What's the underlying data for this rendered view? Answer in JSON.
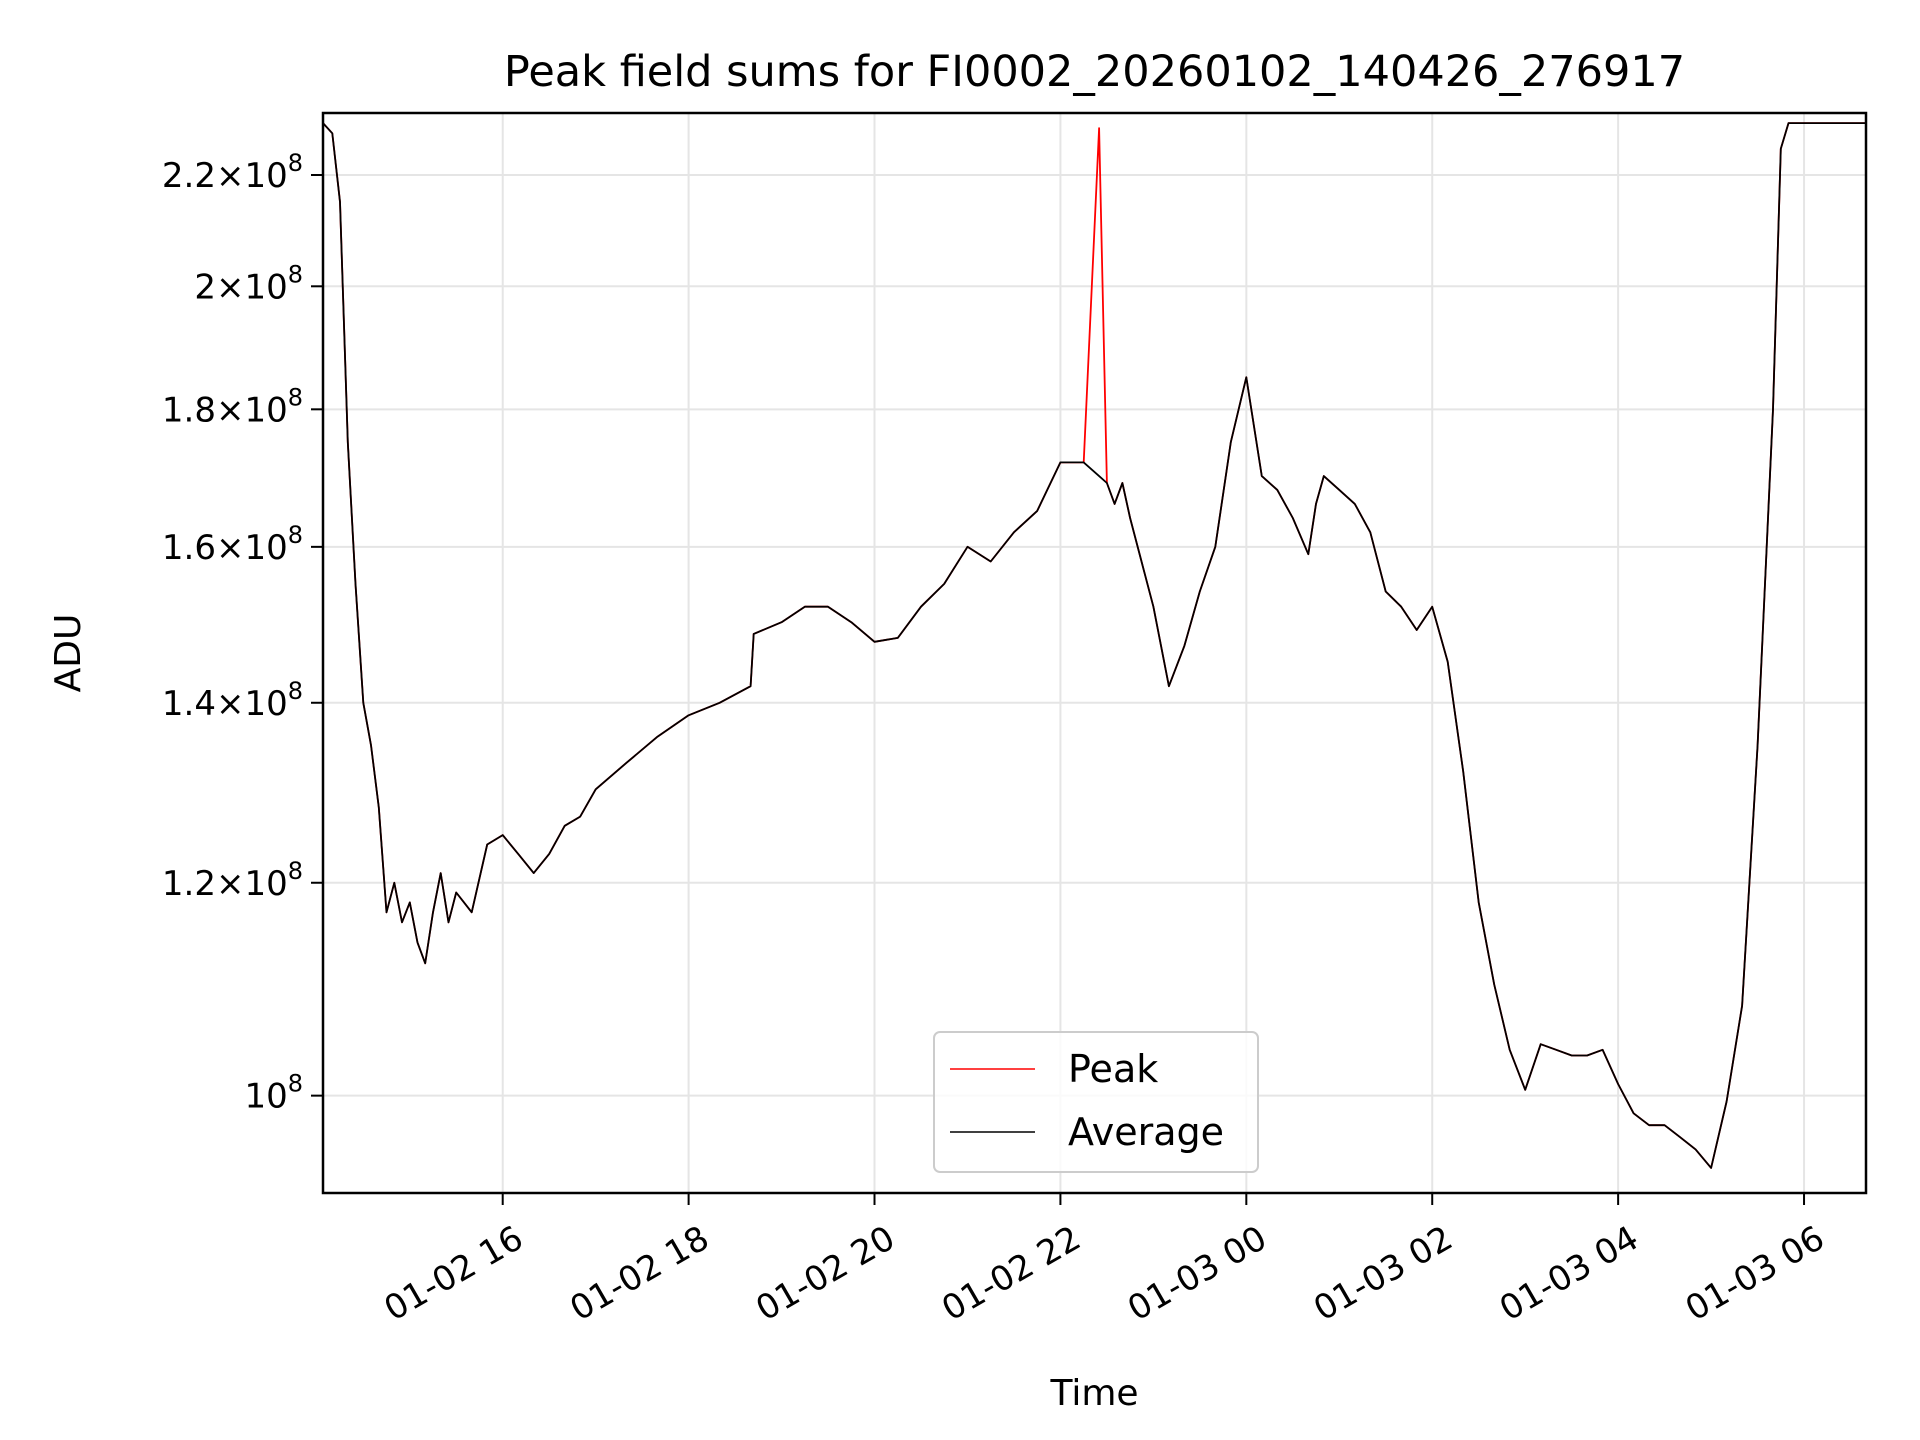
{
  "chart_data": {
    "type": "line",
    "title": "Peak field sums for FI0002_20260102_140426_276917",
    "xlabel": "Time",
    "ylabel": "ADU",
    "yscale": "log",
    "xlim": [
      "2026-01-02 14:04",
      "2026-01-03 06:40"
    ],
    "ylim": [
      92000000,
      232000000
    ],
    "grid": true,
    "legend_position": "bottom-center",
    "colors": {
      "Peak": "#ff0000",
      "Average": "#000000"
    },
    "x_ticks": [
      {
        "value": "2026-01-02 16:00",
        "label": "01-02 16"
      },
      {
        "value": "2026-01-02 18:00",
        "label": "01-02 18"
      },
      {
        "value": "2026-01-02 20:00",
        "label": "01-02 20"
      },
      {
        "value": "2026-01-02 22:00",
        "label": "01-02 22"
      },
      {
        "value": "2026-01-03 00:00",
        "label": "01-03 00"
      },
      {
        "value": "2026-01-03 02:00",
        "label": "01-03 02"
      },
      {
        "value": "2026-01-03 04:00",
        "label": "01-03 04"
      },
      {
        "value": "2026-01-03 06:00",
        "label": "01-03 06"
      }
    ],
    "y_ticks": [
      {
        "value": 100000000,
        "mantissa": "",
        "exp": "8"
      },
      {
        "value": 120000000,
        "mantissa": "1.2",
        "exp": "8"
      },
      {
        "value": 140000000,
        "mantissa": "1.4",
        "exp": "8"
      },
      {
        "value": 160000000,
        "mantissa": "1.6",
        "exp": "8"
      },
      {
        "value": 180000000,
        "mantissa": "1.8",
        "exp": "8"
      },
      {
        "value": 200000000,
        "mantissa": "2",
        "exp": "8"
      },
      {
        "value": 220000000,
        "mantissa": "2.2",
        "exp": "8"
      }
    ],
    "series": [
      {
        "name": "Average",
        "x": [
          "2026-01-02 14:04",
          "2026-01-02 14:10",
          "2026-01-02 14:15",
          "2026-01-02 14:20",
          "2026-01-02 14:25",
          "2026-01-02 14:30",
          "2026-01-02 14:35",
          "2026-01-02 14:40",
          "2026-01-02 14:45",
          "2026-01-02 14:50",
          "2026-01-02 14:55",
          "2026-01-02 15:00",
          "2026-01-02 15:05",
          "2026-01-02 15:10",
          "2026-01-02 15:15",
          "2026-01-02 15:20",
          "2026-01-02 15:25",
          "2026-01-02 15:30",
          "2026-01-02 15:35",
          "2026-01-02 15:40",
          "2026-01-02 15:50",
          "2026-01-02 16:00",
          "2026-01-02 16:10",
          "2026-01-02 16:20",
          "2026-01-02 16:30",
          "2026-01-02 16:40",
          "2026-01-02 16:50",
          "2026-01-02 17:00",
          "2026-01-02 17:20",
          "2026-01-02 17:40",
          "2026-01-02 18:00",
          "2026-01-02 18:20",
          "2026-01-02 18:40",
          "2026-01-02 18:42",
          "2026-01-02 19:00",
          "2026-01-02 19:15",
          "2026-01-02 19:30",
          "2026-01-02 19:45",
          "2026-01-02 20:00",
          "2026-01-02 20:15",
          "2026-01-02 20:30",
          "2026-01-02 20:45",
          "2026-01-02 21:00",
          "2026-01-02 21:15",
          "2026-01-02 21:30",
          "2026-01-02 21:45",
          "2026-01-02 22:00",
          "2026-01-02 22:15",
          "2026-01-02 22:25",
          "2026-01-02 22:30",
          "2026-01-02 22:35",
          "2026-01-02 22:40",
          "2026-01-02 22:45",
          "2026-01-02 23:00",
          "2026-01-02 23:10",
          "2026-01-02 23:20",
          "2026-01-02 23:30",
          "2026-01-02 23:40",
          "2026-01-02 23:50",
          "2026-01-03 00:00",
          "2026-01-03 00:10",
          "2026-01-03 00:20",
          "2026-01-03 00:30",
          "2026-01-03 00:40",
          "2026-01-03 00:45",
          "2026-01-03 00:50",
          "2026-01-03 01:00",
          "2026-01-03 01:10",
          "2026-01-03 01:20",
          "2026-01-03 01:30",
          "2026-01-03 01:40",
          "2026-01-03 01:50",
          "2026-01-03 02:00",
          "2026-01-03 02:10",
          "2026-01-03 02:20",
          "2026-01-03 02:30",
          "2026-01-03 02:40",
          "2026-01-03 02:50",
          "2026-01-03 03:00",
          "2026-01-03 03:10",
          "2026-01-03 03:20",
          "2026-01-03 03:30",
          "2026-01-03 03:40",
          "2026-01-03 03:50",
          "2026-01-03 04:00",
          "2026-01-03 04:10",
          "2026-01-03 04:20",
          "2026-01-03 04:30",
          "2026-01-03 04:40",
          "2026-01-03 04:50",
          "2026-01-03 05:00",
          "2026-01-03 05:10",
          "2026-01-03 05:20",
          "2026-01-03 05:30",
          "2026-01-03 05:40",
          "2026-01-03 05:45",
          "2026-01-03 05:50",
          "2026-01-03 06:00",
          "2026-01-03 06:10",
          "2026-01-03 06:20",
          "2026-01-03 06:30",
          "2026-01-03 06:40"
        ],
        "values": [
          230000000,
          228000000,
          215000000,
          175000000,
          155000000,
          140000000,
          135000000,
          128000000,
          117000000,
          120000000,
          116000000,
          118000000,
          114000000,
          112000000,
          117000000,
          121000000,
          116000000,
          119000000,
          118000000,
          117000000,
          124000000,
          125000000,
          123000000,
          121000000,
          123000000,
          126000000,
          127000000,
          130000000,
          133000000,
          136000000,
          138500000,
          140000000,
          142000000,
          148500000,
          150000000,
          152000000,
          152000000,
          150000000,
          147500000,
          148000000,
          152000000,
          155000000,
          160000000,
          158000000,
          162000000,
          165000000,
          172000000,
          172000000,
          170000000,
          169000000,
          166000000,
          169000000,
          164000000,
          152000000,
          142000000,
          147000000,
          154000000,
          160000000,
          175000000,
          185000000,
          170000000,
          168000000,
          164000000,
          159000000,
          166000000,
          170000000,
          168000000,
          166000000,
          162000000,
          154000000,
          152000000,
          149000000,
          152000000,
          145000000,
          132000000,
          118000000,
          110000000,
          104000000,
          100500000,
          104500000,
          104000000,
          103500000,
          103500000,
          104000000,
          101000000,
          98500000,
          97500000,
          97500000,
          96500000,
          95500000,
          94000000,
          99500000,
          108000000,
          135000000,
          180000000,
          225000000,
          230000000,
          230000000,
          230000000,
          230000000,
          230000000,
          230000000
        ]
      },
      {
        "name": "Peak",
        "x": [
          "2026-01-02 14:04",
          "2026-01-02 14:10",
          "2026-01-02 14:15",
          "2026-01-02 14:20",
          "2026-01-02 14:25",
          "2026-01-02 14:30",
          "2026-01-02 14:35",
          "2026-01-02 14:40",
          "2026-01-02 14:45",
          "2026-01-02 14:50",
          "2026-01-02 14:55",
          "2026-01-02 15:00",
          "2026-01-02 15:05",
          "2026-01-02 15:10",
          "2026-01-02 15:15",
          "2026-01-02 15:20",
          "2026-01-02 15:25",
          "2026-01-02 15:30",
          "2026-01-02 15:35",
          "2026-01-02 15:40",
          "2026-01-02 15:50",
          "2026-01-02 16:00",
          "2026-01-02 16:10",
          "2026-01-02 16:20",
          "2026-01-02 16:30",
          "2026-01-02 16:40",
          "2026-01-02 16:50",
          "2026-01-02 17:00",
          "2026-01-02 17:20",
          "2026-01-02 17:40",
          "2026-01-02 18:00",
          "2026-01-02 18:20",
          "2026-01-02 18:40",
          "2026-01-02 18:42",
          "2026-01-02 19:00",
          "2026-01-02 19:15",
          "2026-01-02 19:30",
          "2026-01-02 19:45",
          "2026-01-02 20:00",
          "2026-01-02 20:15",
          "2026-01-02 20:30",
          "2026-01-02 20:45",
          "2026-01-02 21:00",
          "2026-01-02 21:15",
          "2026-01-02 21:30",
          "2026-01-02 21:45",
          "2026-01-02 22:00",
          "2026-01-02 22:15",
          "2026-01-02 22:25",
          "2026-01-02 22:30",
          "2026-01-02 22:35",
          "2026-01-02 22:40",
          "2026-01-02 22:45",
          "2026-01-02 23:00",
          "2026-01-02 23:10",
          "2026-01-02 23:20",
          "2026-01-02 23:30",
          "2026-01-02 23:40",
          "2026-01-02 23:50",
          "2026-01-03 00:00",
          "2026-01-03 00:10",
          "2026-01-03 00:20",
          "2026-01-03 00:30",
          "2026-01-03 00:40",
          "2026-01-03 00:45",
          "2026-01-03 00:50",
          "2026-01-03 01:00",
          "2026-01-03 01:10",
          "2026-01-03 01:20",
          "2026-01-03 01:30",
          "2026-01-03 01:40",
          "2026-01-03 01:50",
          "2026-01-03 02:00",
          "2026-01-03 02:10",
          "2026-01-03 02:20",
          "2026-01-03 02:30",
          "2026-01-03 02:40",
          "2026-01-03 02:50",
          "2026-01-03 03:00",
          "2026-01-03 03:10",
          "2026-01-03 03:20",
          "2026-01-03 03:30",
          "2026-01-03 03:40",
          "2026-01-03 03:50",
          "2026-01-03 04:00",
          "2026-01-03 04:10",
          "2026-01-03 04:20",
          "2026-01-03 04:30",
          "2026-01-03 04:40",
          "2026-01-03 04:50",
          "2026-01-03 05:00",
          "2026-01-03 05:10",
          "2026-01-03 05:20",
          "2026-01-03 05:30",
          "2026-01-03 05:40",
          "2026-01-03 05:45",
          "2026-01-03 05:50",
          "2026-01-03 06:00",
          "2026-01-03 06:10",
          "2026-01-03 06:20",
          "2026-01-03 06:30",
          "2026-01-03 06:40"
        ],
        "values": [
          230000000,
          228000000,
          215000000,
          175000000,
          155000000,
          140000000,
          135000000,
          128000000,
          117000000,
          120000000,
          116000000,
          118000000,
          114000000,
          112000000,
          117000000,
          121000000,
          116000000,
          119000000,
          118000000,
          117000000,
          124000000,
          125000000,
          123000000,
          121000000,
          123000000,
          126000000,
          127000000,
          130000000,
          133000000,
          136000000,
          138500000,
          140000000,
          142000000,
          148500000,
          150000000,
          152000000,
          152000000,
          150000000,
          147500000,
          148000000,
          152000000,
          155000000,
          160000000,
          158000000,
          162000000,
          165000000,
          172000000,
          172000000,
          229000000,
          169000000,
          166000000,
          169000000,
          164000000,
          152000000,
          142000000,
          147000000,
          154000000,
          160000000,
          175000000,
          185000000,
          170000000,
          168000000,
          164000000,
          159000000,
          166000000,
          170000000,
          168000000,
          166000000,
          162000000,
          154000000,
          152000000,
          149000000,
          152000000,
          145000000,
          132000000,
          118000000,
          110000000,
          104000000,
          100500000,
          104500000,
          104000000,
          103500000,
          103500000,
          104000000,
          101000000,
          98500000,
          97500000,
          97500000,
          96500000,
          95500000,
          94000000,
          99500000,
          108000000,
          135000000,
          180000000,
          225000000,
          230000000,
          230000000,
          230000000,
          230000000,
          230000000,
          230000000
        ]
      }
    ]
  }
}
